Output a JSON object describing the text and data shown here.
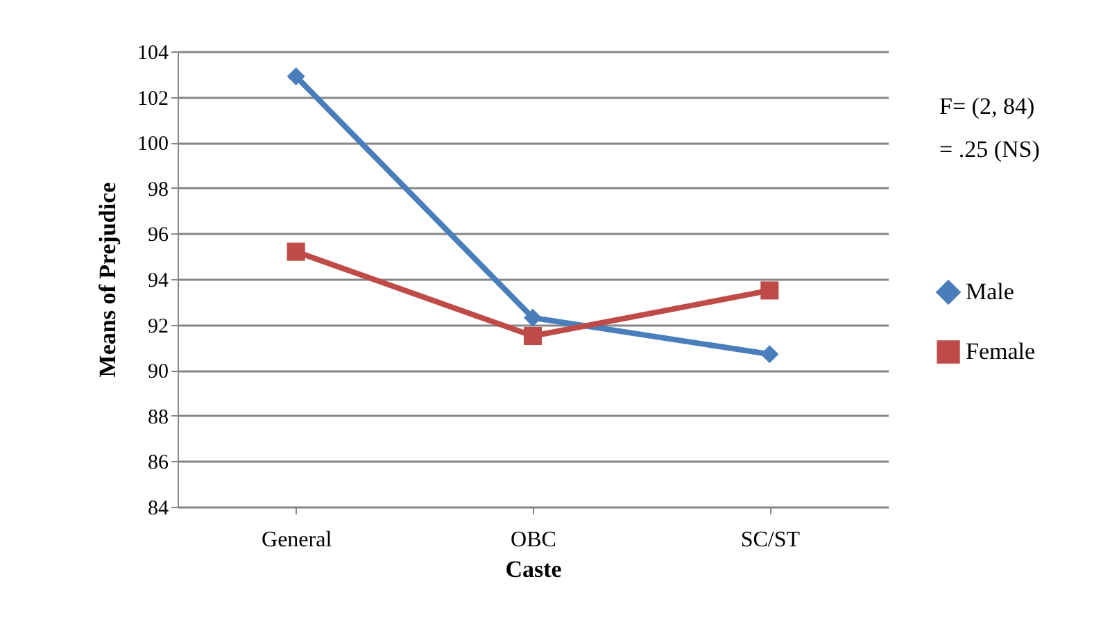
{
  "chart_data": {
    "type": "line",
    "xlabel": "Caste",
    "ylabel": "Means of Prejudice",
    "categories": [
      "General",
      "OBC",
      "SC/ST"
    ],
    "series": [
      {
        "name": "Male",
        "color": "#4a7ebb",
        "marker": "diamond",
        "values": [
          102.9,
          92.3,
          90.7
        ]
      },
      {
        "name": "Female",
        "color": "#be4b48",
        "marker": "square",
        "values": [
          95.2,
          91.5,
          93.5
        ]
      }
    ],
    "ylim": [
      84,
      104
    ],
    "yticks": [
      84,
      86,
      88,
      90,
      92,
      94,
      96,
      98,
      100,
      102,
      104
    ],
    "grid": "y",
    "legend": "right",
    "line_style": "solid",
    "annotations": [
      "F= (2, 84)",
      "= .25 (NS)"
    ]
  }
}
